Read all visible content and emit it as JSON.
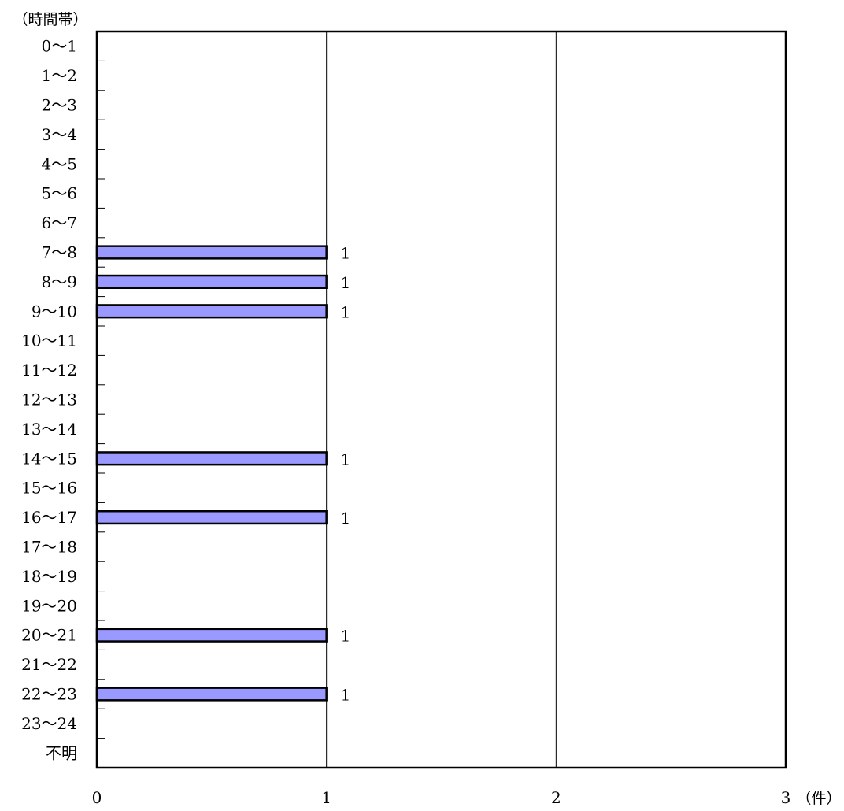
{
  "chart_data": {
    "type": "bar",
    "orientation": "horizontal",
    "ylabel": "（時間帯）",
    "xlabel": "（件）",
    "categories": [
      "0～1",
      "1～2",
      "2～3",
      "3～4",
      "4～5",
      "5～6",
      "6～7",
      "7～8",
      "8～9",
      "9～10",
      "10～11",
      "11～12",
      "12～13",
      "13～14",
      "14～15",
      "15～16",
      "16～17",
      "17～18",
      "18～19",
      "19～20",
      "20～21",
      "21～22",
      "22～23",
      "23～24",
      "不明"
    ],
    "values": [
      0,
      0,
      0,
      0,
      0,
      0,
      0,
      1,
      1,
      1,
      0,
      0,
      0,
      0,
      1,
      0,
      1,
      0,
      0,
      0,
      1,
      0,
      1,
      0,
      0
    ],
    "xlim": [
      0,
      3
    ],
    "xticks": [
      "0",
      "1",
      "2",
      "3"
    ],
    "grid": "vertical",
    "legend": "none",
    "bar_color": "#9999ff",
    "bar_edge_color": "#000000"
  }
}
